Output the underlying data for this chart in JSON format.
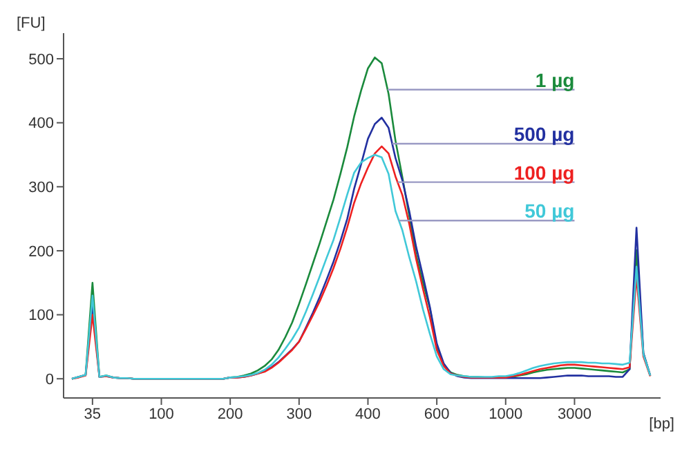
{
  "chart_data": {
    "type": "line",
    "xlabel": "[bp]",
    "ylabel": "[FU]",
    "categories": [
      null,
      null,
      null,
      "35",
      null,
      null,
      null,
      null,
      null,
      null,
      null,
      null,
      null,
      "100",
      null,
      null,
      null,
      null,
      null,
      null,
      null,
      null,
      null,
      "200",
      null,
      null,
      null,
      null,
      null,
      null,
      null,
      null,
      null,
      "300",
      null,
      null,
      null,
      null,
      null,
      null,
      null,
      null,
      null,
      "400",
      null,
      null,
      null,
      null,
      null,
      null,
      null,
      null,
      null,
      "600",
      null,
      null,
      null,
      null,
      null,
      null,
      null,
      null,
      null,
      "1000",
      null,
      null,
      null,
      null,
      null,
      null,
      null,
      null,
      null,
      "3000",
      null,
      null,
      null,
      null,
      null,
      null,
      null,
      null,
      null,
      null,
      null
    ],
    "ylim": [
      -30,
      540
    ],
    "yticks": [
      0,
      100,
      200,
      300,
      400,
      500
    ],
    "series": [
      {
        "name": "1 µg",
        "color": "#1a8a3c",
        "values": [
          0,
          3,
          6,
          150,
          3,
          5,
          2,
          1,
          1,
          0,
          0,
          0,
          0,
          0,
          0,
          0,
          0,
          0,
          0,
          0,
          0,
          0,
          0,
          2,
          3,
          5,
          8,
          13,
          20,
          30,
          45,
          65,
          88,
          117,
          148,
          180,
          212,
          246,
          280,
          320,
          362,
          410,
          450,
          485,
          502,
          493,
          445,
          372,
          315,
          255,
          193,
          150,
          110,
          50,
          22,
          10,
          6,
          4,
          3,
          3,
          2,
          2,
          2,
          2,
          3,
          5,
          7,
          10,
          12,
          14,
          15,
          16,
          17,
          17,
          16,
          15,
          14,
          13,
          12,
          11,
          10,
          15,
          201,
          40,
          5
        ]
      },
      {
        "name": "500 µg",
        "color": "#2230a0",
        "values": [
          0,
          3,
          6,
          115,
          3,
          4,
          2,
          1,
          1,
          0,
          0,
          0,
          0,
          0,
          0,
          0,
          0,
          0,
          0,
          0,
          0,
          0,
          0,
          2,
          2,
          3,
          5,
          8,
          12,
          18,
          26,
          36,
          46,
          58,
          80,
          103,
          128,
          155,
          183,
          215,
          250,
          297,
          335,
          375,
          398,
          408,
          392,
          345,
          310,
          262,
          206,
          160,
          112,
          55,
          24,
          9,
          4,
          2,
          1,
          1,
          1,
          1,
          1,
          1,
          1,
          1,
          1,
          1,
          1,
          2,
          3,
          4,
          5,
          5,
          5,
          4,
          4,
          4,
          4,
          3,
          3,
          15,
          236,
          40,
          5
        ]
      },
      {
        "name": "100 µg",
        "color": "#ee2020",
        "values": [
          0,
          2,
          5,
          100,
          3,
          4,
          2,
          1,
          1,
          0,
          0,
          0,
          0,
          0,
          0,
          0,
          0,
          0,
          0,
          0,
          0,
          0,
          0,
          2,
          2,
          3,
          5,
          8,
          11,
          17,
          25,
          35,
          45,
          58,
          78,
          99,
          121,
          146,
          173,
          203,
          237,
          275,
          305,
          330,
          352,
          363,
          352,
          316,
          287,
          242,
          187,
          140,
          96,
          45,
          20,
          8,
          5,
          3,
          2,
          2,
          2,
          2,
          2,
          2,
          4,
          6,
          9,
          12,
          15,
          17,
          19,
          21,
          22,
          22,
          21,
          20,
          19,
          18,
          17,
          16,
          15,
          18,
          160,
          35,
          4
        ]
      },
      {
        "name": "50 µg",
        "color": "#40c8d8",
        "values": [
          0,
          3,
          6,
          130,
          3,
          5,
          2,
          1,
          1,
          0,
          0,
          0,
          0,
          0,
          0,
          0,
          0,
          0,
          0,
          0,
          0,
          0,
          0,
          2,
          3,
          4,
          6,
          9,
          14,
          22,
          33,
          47,
          62,
          80,
          105,
          132,
          160,
          189,
          217,
          252,
          288,
          322,
          338,
          345,
          350,
          346,
          320,
          262,
          232,
          190,
          152,
          108,
          70,
          35,
          15,
          7,
          5,
          4,
          3,
          3,
          3,
          3,
          4,
          4,
          6,
          9,
          13,
          17,
          20,
          22,
          24,
          25,
          26,
          26,
          26,
          25,
          25,
          24,
          24,
          23,
          22,
          25,
          175,
          38,
          5
        ]
      }
    ]
  }
}
